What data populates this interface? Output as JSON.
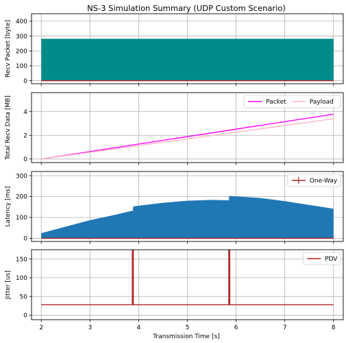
{
  "chart_data": {
    "title": "NS-3 Simulation Summary (UDP Custom Scenario)",
    "shared_x": {
      "label": "Transmission Time [s]",
      "range": [
        1.8,
        8.2
      ],
      "ticks": [
        2,
        3,
        4,
        5,
        6,
        7,
        8
      ],
      "tick_labels": [
        "2",
        "3",
        "4",
        "5",
        "6",
        "7",
        "8"
      ]
    },
    "grid": true,
    "panels": [
      {
        "type": "area",
        "ylabel": "Recv Packet [byte]",
        "ylim": [
          -20,
          450
        ],
        "yticks": [
          0,
          100,
          200,
          300,
          400
        ],
        "ytick_labels": [
          "0",
          "100",
          "200",
          "300",
          "400"
        ],
        "legend": [],
        "series": [
          {
            "color": "#008b8b",
            "kind": "fill",
            "x": [
              2,
              8
            ],
            "y": [
              282,
              282
            ]
          },
          {
            "color": "#b22222",
            "kind": "line",
            "x": [
              2,
              8
            ],
            "y": [
              0,
              0
            ]
          }
        ]
      },
      {
        "type": "line",
        "ylabel": "Total Recv Data [MB]",
        "ylim": [
          -0.3,
          5.6
        ],
        "yticks": [
          0,
          2,
          4
        ],
        "ytick_labels": [
          "0",
          "2",
          "4"
        ],
        "legend": [
          {
            "label": "Packet",
            "color": "#ff00ff",
            "marker": "line"
          },
          {
            "label": "Payload",
            "color": "#ffb6c1",
            "marker": "line"
          }
        ],
        "legend_position": "top-right",
        "legend_columns": 2,
        "series": [
          {
            "color": "#ff00ff",
            "kind": "line",
            "x": [
              2,
              8
            ],
            "y": [
              0,
              3.78
            ]
          },
          {
            "color": "#ffb6c1",
            "kind": "line",
            "x": [
              2,
              8
            ],
            "y": [
              0,
              3.4
            ]
          }
        ]
      },
      {
        "type": "area",
        "ylabel": "Latency [ms]",
        "ylim": [
          -15,
          320
        ],
        "yticks": [
          0,
          100,
          200,
          300
        ],
        "ytick_labels": [
          "0",
          "100",
          "200",
          "300"
        ],
        "legend": [
          {
            "label": "One-Way",
            "color": "#b22222",
            "marker": "errorbar"
          }
        ],
        "legend_position": "top-right",
        "series": [
          {
            "color": "#1f77b4",
            "kind": "fill",
            "x": [
              2.0,
              2.5,
              3.0,
              3.5,
              3.88,
              3.89,
              4.5,
              5.0,
              5.5,
              5.85,
              5.86,
              6.5,
              7.0,
              7.5,
              8.0
            ],
            "y": [
              25,
              56,
              87,
              112,
              133,
              153,
              170,
              180,
              184,
              182,
              203,
              193,
              178,
              160,
              142
            ]
          },
          {
            "color": "#b22222",
            "kind": "line",
            "x": [
              2,
              8
            ],
            "y": [
              0,
              0
            ]
          }
        ]
      },
      {
        "type": "line",
        "ylabel": "Jitter [us]",
        "ylim": [
          -12,
          175
        ],
        "yticks": [
          0,
          50,
          100,
          150
        ],
        "ytick_labels": [
          "0",
          "50",
          "100",
          "150"
        ],
        "legend": [
          {
            "label": "PDV",
            "color": "#b22222",
            "marker": "line"
          }
        ],
        "legend_position": "top-right",
        "series": [
          {
            "color": "#b22222",
            "kind": "line",
            "x": [
              2.0,
              3.87,
              3.87,
              3.89,
              3.89,
              5.85,
              5.85,
              5.87,
              5.87,
              8.0
            ],
            "y": [
              28,
              28,
              200,
              200,
              28,
              28,
              200,
              200,
              28,
              28
            ]
          }
        ]
      }
    ]
  }
}
